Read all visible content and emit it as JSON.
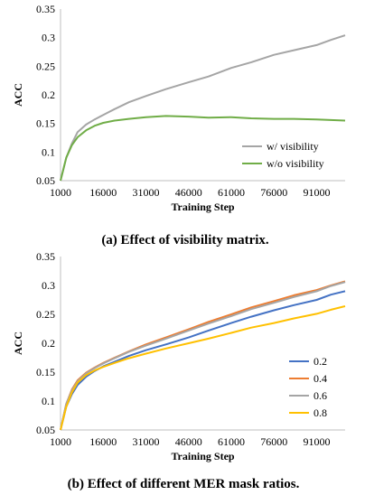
{
  "chart_data": [
    {
      "type": "line",
      "caption": "(a) Effect of visibility matrix.",
      "xlabel": "Training Step",
      "ylabel": "ACC",
      "xticks": [
        "1000",
        "16000",
        "31000",
        "46000",
        "61000",
        "76000",
        "91000"
      ],
      "xlim": [
        1000,
        101000
      ],
      "yticks": [
        "0.05",
        "0.1",
        "0.15",
        "0.2",
        "0.25",
        "0.3",
        "0.35"
      ],
      "ylim": [
        0.05,
        0.35
      ],
      "grid": false,
      "legend_position": "bottom-right",
      "x": [
        1000,
        3000,
        5000,
        7000,
        10000,
        13000,
        16000,
        20000,
        25000,
        31000,
        38000,
        46000,
        53000,
        61000,
        68000,
        76000,
        83000,
        91000,
        96000,
        101000
      ],
      "series": [
        {
          "name": "w/ visibility",
          "color": "#a5a5a5",
          "values": [
            0.05,
            0.09,
            0.115,
            0.135,
            0.148,
            0.157,
            0.165,
            0.175,
            0.187,
            0.198,
            0.21,
            0.222,
            0.232,
            0.247,
            0.257,
            0.27,
            0.278,
            0.287,
            0.296,
            0.304
          ]
        },
        {
          "name": "w/o visibility",
          "color": "#70ad47",
          "values": [
            0.05,
            0.09,
            0.112,
            0.126,
            0.138,
            0.146,
            0.151,
            0.155,
            0.158,
            0.161,
            0.163,
            0.162,
            0.16,
            0.161,
            0.159,
            0.158,
            0.158,
            0.157,
            0.156,
            0.155
          ]
        }
      ]
    },
    {
      "type": "line",
      "caption": "(b) Effect of different MER mask ratios.",
      "xlabel": "Training Step",
      "ylabel": "ACC",
      "xticks": [
        "1000",
        "16000",
        "31000",
        "46000",
        "61000",
        "76000",
        "91000"
      ],
      "xlim": [
        1000,
        101000
      ],
      "yticks": [
        "0.05",
        "0.1",
        "0.15",
        "0.2",
        "0.25",
        "0.3",
        "0.35"
      ],
      "ylim": [
        0.05,
        0.35
      ],
      "grid": false,
      "legend_position": "bottom-right",
      "x": [
        1000,
        3000,
        5000,
        7000,
        10000,
        13000,
        16000,
        20000,
        25000,
        31000,
        38000,
        46000,
        53000,
        61000,
        68000,
        76000,
        83000,
        91000,
        96000,
        101000
      ],
      "series": [
        {
          "name": "0.2",
          "color": "#4472c4",
          "values": [
            0.05,
            0.09,
            0.112,
            0.128,
            0.142,
            0.152,
            0.16,
            0.168,
            0.178,
            0.188,
            0.198,
            0.21,
            0.222,
            0.235,
            0.246,
            0.257,
            0.266,
            0.275,
            0.284,
            0.29
          ]
        },
        {
          "name": "0.4",
          "color": "#ed7d31",
          "values": [
            0.05,
            0.095,
            0.12,
            0.136,
            0.149,
            0.158,
            0.166,
            0.175,
            0.186,
            0.198,
            0.21,
            0.224,
            0.237,
            0.25,
            0.262,
            0.273,
            0.283,
            0.292,
            0.3,
            0.307
          ]
        },
        {
          "name": "0.6",
          "color": "#a5a5a5",
          "values": [
            0.05,
            0.095,
            0.118,
            0.134,
            0.148,
            0.157,
            0.165,
            0.174,
            0.185,
            0.196,
            0.208,
            0.222,
            0.234,
            0.247,
            0.259,
            0.27,
            0.28,
            0.29,
            0.299,
            0.306
          ]
        },
        {
          "name": "0.8",
          "color": "#ffc000",
          "values": [
            0.05,
            0.09,
            0.115,
            0.132,
            0.145,
            0.153,
            0.159,
            0.166,
            0.174,
            0.182,
            0.191,
            0.2,
            0.208,
            0.218,
            0.227,
            0.235,
            0.243,
            0.251,
            0.258,
            0.264
          ]
        }
      ]
    }
  ]
}
